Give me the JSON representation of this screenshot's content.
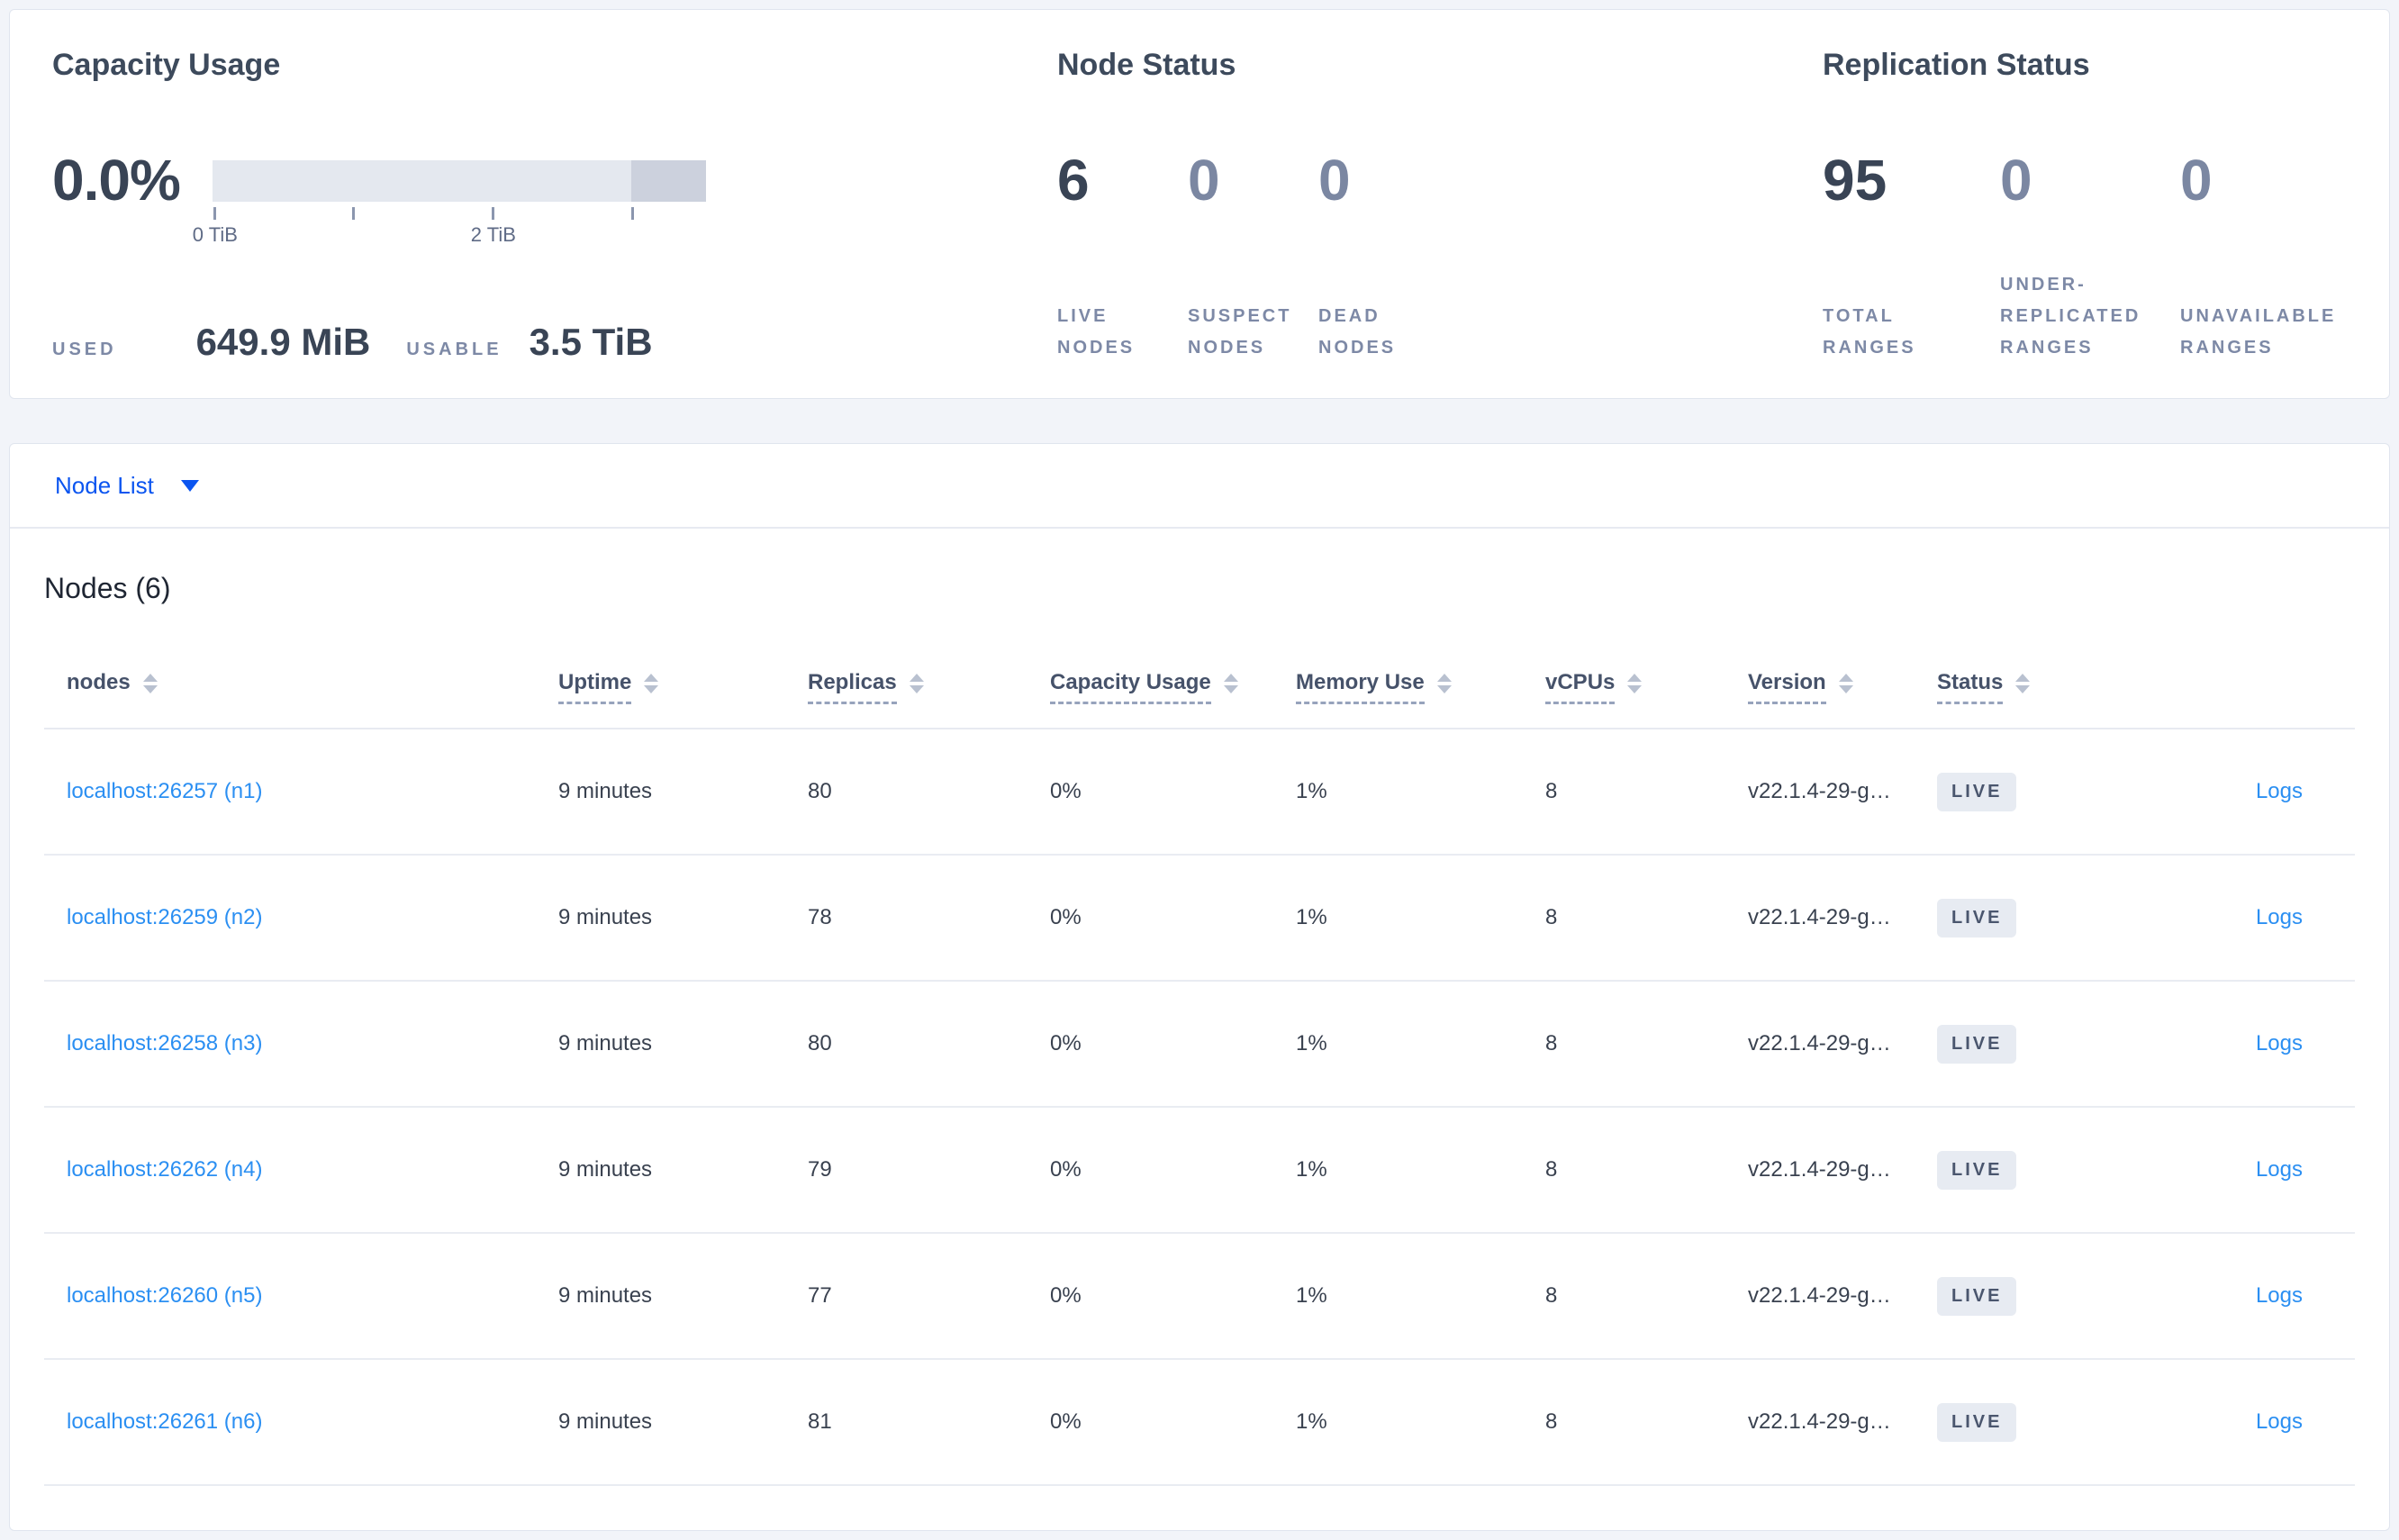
{
  "summary": {
    "capacity": {
      "title": "Capacity Usage",
      "percent": "0.0%",
      "tick_labels": {
        "t0": "0 TiB",
        "t2": "2 TiB"
      },
      "used_label": "USED",
      "used_value": "649.9 MiB",
      "usable_label": "USABLE",
      "usable_value": "3.5 TiB"
    },
    "node_status": {
      "title": "Node Status",
      "stats": [
        {
          "value": "6",
          "label": "LIVE NODES"
        },
        {
          "value": "0",
          "label": "SUSPECT NODES"
        },
        {
          "value": "0",
          "label": "DEAD NODES"
        }
      ]
    },
    "replication": {
      "title": "Replication Status",
      "stats": [
        {
          "value": "95",
          "label": "TOTAL RANGES"
        },
        {
          "value": "0",
          "label": "UNDER-REPLICATED RANGES"
        },
        {
          "value": "0",
          "label": "UNAVAILABLE RANGES"
        }
      ]
    }
  },
  "view_selector": {
    "label": "Node List"
  },
  "table": {
    "heading": "Nodes (6)",
    "columns": [
      "nodes",
      "Uptime",
      "Replicas",
      "Capacity Usage",
      "Memory Use",
      "vCPUs",
      "Version",
      "Status"
    ],
    "rows": [
      {
        "node": "localhost:26257 (n1)",
        "uptime": "9 minutes",
        "replicas": "80",
        "capacity": "0%",
        "memory": "1%",
        "vcpus": "8",
        "version": "v22.1.4-29-g…",
        "status": "LIVE",
        "logs": "Logs"
      },
      {
        "node": "localhost:26259 (n2)",
        "uptime": "9 minutes",
        "replicas": "78",
        "capacity": "0%",
        "memory": "1%",
        "vcpus": "8",
        "version": "v22.1.4-29-g…",
        "status": "LIVE",
        "logs": "Logs"
      },
      {
        "node": "localhost:26258 (n3)",
        "uptime": "9 minutes",
        "replicas": "80",
        "capacity": "0%",
        "memory": "1%",
        "vcpus": "8",
        "version": "v22.1.4-29-g…",
        "status": "LIVE",
        "logs": "Logs"
      },
      {
        "node": "localhost:26262 (n4)",
        "uptime": "9 minutes",
        "replicas": "79",
        "capacity": "0%",
        "memory": "1%",
        "vcpus": "8",
        "version": "v22.1.4-29-g…",
        "status": "LIVE",
        "logs": "Logs"
      },
      {
        "node": "localhost:26260 (n5)",
        "uptime": "9 minutes",
        "replicas": "77",
        "capacity": "0%",
        "memory": "1%",
        "vcpus": "8",
        "version": "v22.1.4-29-g…",
        "status": "LIVE",
        "logs": "Logs"
      },
      {
        "node": "localhost:26261 (n6)",
        "uptime": "9 minutes",
        "replicas": "81",
        "capacity": "0%",
        "memory": "1%",
        "vcpus": "8",
        "version": "v22.1.4-29-g…",
        "status": "LIVE",
        "logs": "Logs"
      }
    ]
  },
  "colors": {
    "selector_blue": "#0b55f0",
    "link_blue": "#2b8ff2",
    "badge_bg": "#e7ebf2",
    "badge_text": "#4a566e",
    "bar_light": "#e4e8ef",
    "bar_dark": "#ccd1dd",
    "page_bg": "#f2f4f9"
  }
}
